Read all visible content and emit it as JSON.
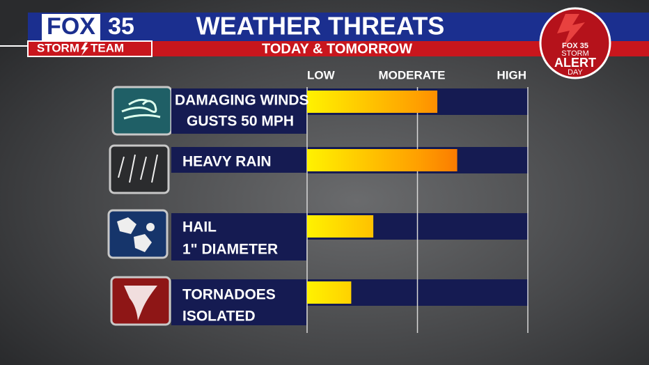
{
  "chart_data": {
    "type": "bar",
    "orientation": "horizontal",
    "title": "WEATHER THREATS",
    "subtitle": "TODAY & TOMORROW",
    "categories": [
      "DAMAGING WINDS",
      "HEAVY RAIN",
      "HAIL",
      "TORNADOES"
    ],
    "category_details": [
      "GUSTS 50 MPH",
      null,
      "1\" DIAMETER",
      "ISOLATED"
    ],
    "values": [
      59,
      68,
      30,
      20
    ],
    "xlim": [
      0,
      100
    ],
    "xticks": [
      {
        "value": 0,
        "label": "LOW"
      },
      {
        "value": 50,
        "label": "MODERATE"
      },
      {
        "value": 100,
        "label": "HIGH"
      }
    ],
    "grid": true,
    "colors": [
      "#fff200",
      "#ffa000",
      "#f23c00"
    ]
  },
  "branding": {
    "logo": "FOX",
    "channel": "35",
    "team_left": "STORM",
    "team_right": "TEAM",
    "badge": {
      "logo": "FOX 35",
      "line1": "STORM",
      "line2": "ALERT",
      "line3": "DAY"
    }
  }
}
